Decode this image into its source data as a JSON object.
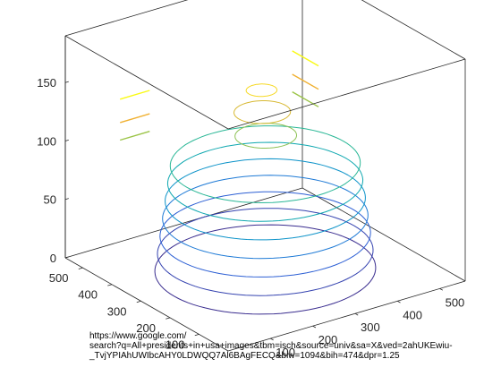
{
  "chart_data": {
    "type": "contour3d",
    "title": "",
    "xlabel": "",
    "ylabel": "",
    "zlabel": "",
    "xlim": [
      0,
      560
    ],
    "ylim": [
      0,
      560
    ],
    "zlim": [
      0,
      190
    ],
    "x_ticks": [
      "100",
      "200",
      "300",
      "400",
      "500"
    ],
    "y_ticks": [
      "100",
      "200",
      "300",
      "400",
      "500"
    ],
    "z_ticks": [
      "0",
      "50",
      "100",
      "150"
    ],
    "grid": false,
    "box": true,
    "colormap": "parula",
    "levels": [
      {
        "z": 0,
        "r": 215,
        "cx": 280,
        "cy": 280,
        "color": "#3a2d8f"
      },
      {
        "z": 15,
        "r": 210,
        "cx": 280,
        "cy": 280,
        "color": "#3543b0"
      },
      {
        "z": 30,
        "r": 205,
        "cx": 280,
        "cy": 280,
        "color": "#2c5fd4"
      },
      {
        "z": 45,
        "r": 200,
        "cx": 280,
        "cy": 280,
        "color": "#1e7ad6"
      },
      {
        "z": 60,
        "r": 195,
        "cx": 280,
        "cy": 280,
        "color": "#0d93c9"
      },
      {
        "z": 75,
        "r": 190,
        "cx": 280,
        "cy": 280,
        "color": "#10a8b0"
      },
      {
        "z": 90,
        "r": 185,
        "cx": 280,
        "cy": 280,
        "color": "#2ab796"
      },
      {
        "z": 110,
        "r": 60,
        "cx": 295,
        "cy": 300,
        "color": "#8cc153"
      },
      {
        "z": 130,
        "r": 55,
        "cx": 290,
        "cy": 305,
        "color": "#d8b934"
      },
      {
        "z": 150,
        "r": 30,
        "cx": 285,
        "cy": 300,
        "color": "#f6d925"
      }
    ],
    "streaks": [
      {
        "z": 150,
        "y": 430,
        "x": [
          40,
          110
        ],
        "color": "#f9fa14"
      },
      {
        "z": 130,
        "y": 430,
        "x": [
          40,
          110
        ],
        "color": "#f0b030"
      },
      {
        "z": 115,
        "y": 430,
        "x": [
          40,
          110
        ],
        "color": "#9bc447"
      },
      {
        "z": 150,
        "x": 440,
        "y": [
          330,
          420
        ],
        "color": "#f9fa14"
      },
      {
        "z": 130,
        "x": 440,
        "y": [
          330,
          420
        ],
        "color": "#f0b030"
      },
      {
        "z": 115,
        "x": 440,
        "y": [
          330,
          420
        ],
        "color": "#9bc447"
      }
    ]
  },
  "caption": {
    "line1": "https://www.google.com/",
    "line2": "search?q=All+presidents+in+usa+images&tbm=isch&source=univ&sa=X&ved=2ahUKEwiu-",
    "line3": "_TvjYPIAhUWIbcAHY0LDWQQ7Al6BAgFECQ&biw=1094&bih=474&dpr=1.25"
  }
}
